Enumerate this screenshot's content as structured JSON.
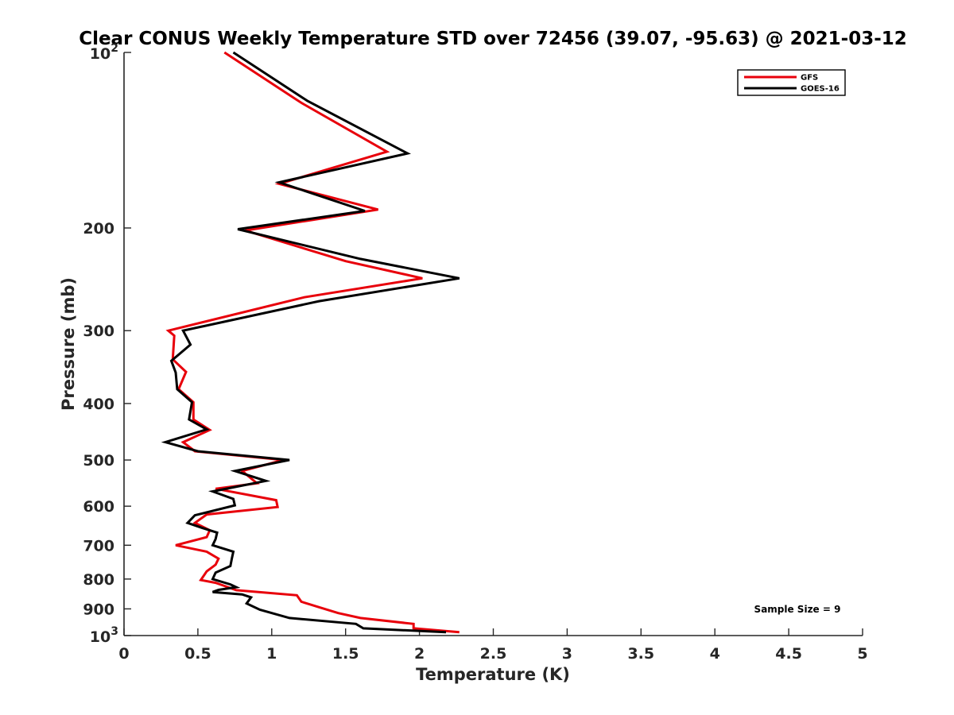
{
  "chart_data": {
    "type": "line",
    "title": "Clear CONUS Weekly Temperature STD over 72456 (39.07, -95.63) @ 2021-03-12",
    "xlabel": "Temperature (K)",
    "ylabel": "Pressure (mb)",
    "xlim": [
      0,
      5
    ],
    "ylim": [
      100,
      1000
    ],
    "yscale": "log",
    "y_direction": "reverse",
    "grid": false,
    "legend_position": "top-right",
    "x_ticks": [
      {
        "value": 0,
        "label": "0"
      },
      {
        "value": 0.5,
        "label": "0.5"
      },
      {
        "value": 1,
        "label": "1"
      },
      {
        "value": 1.5,
        "label": "1.5"
      },
      {
        "value": 2,
        "label": "2"
      },
      {
        "value": 2.5,
        "label": "2.5"
      },
      {
        "value": 3,
        "label": "3"
      },
      {
        "value": 3.5,
        "label": "3.5"
      },
      {
        "value": 4,
        "label": "4"
      },
      {
        "value": 4.5,
        "label": "4.5"
      },
      {
        "value": 5,
        "label": "5"
      }
    ],
    "y_ticks": [
      {
        "value": 100,
        "base": "10",
        "exp": "2"
      },
      {
        "value": 200,
        "label": "200"
      },
      {
        "value": 300,
        "label": "300"
      },
      {
        "value": 400,
        "label": "400"
      },
      {
        "value": 500,
        "label": "500"
      },
      {
        "value": 600,
        "label": "600"
      },
      {
        "value": 700,
        "label": "700"
      },
      {
        "value": 800,
        "label": "800"
      },
      {
        "value": 900,
        "label": "900"
      },
      {
        "value": 1000,
        "base": "10",
        "exp": "3"
      }
    ],
    "series": [
      {
        "name": "GFS",
        "color": "#e8000b",
        "points": [
          [
            0.68,
            100
          ],
          [
            1.2,
            122
          ],
          [
            1.78,
            148
          ],
          [
            1.05,
            168
          ],
          [
            1.72,
            186
          ],
          [
            0.82,
            202
          ],
          [
            1.5,
            228
          ],
          [
            2.02,
            244
          ],
          [
            1.22,
            263
          ],
          [
            0.3,
            300
          ],
          [
            0.34,
            306
          ],
          [
            0.33,
            336
          ],
          [
            0.42,
            353
          ],
          [
            0.37,
            378
          ],
          [
            0.47,
            398
          ],
          [
            0.47,
            426
          ],
          [
            0.58,
            444
          ],
          [
            0.4,
            466
          ],
          [
            0.48,
            483
          ],
          [
            1.08,
            500
          ],
          [
            0.8,
            522
          ],
          [
            0.9,
            548
          ],
          [
            0.62,
            560
          ],
          [
            1.03,
            586
          ],
          [
            1.04,
            602
          ],
          [
            0.56,
            620
          ],
          [
            0.48,
            641
          ],
          [
            0.58,
            660
          ],
          [
            0.56,
            678
          ],
          [
            0.35,
            700
          ],
          [
            0.56,
            718
          ],
          [
            0.64,
            738
          ],
          [
            0.62,
            756
          ],
          [
            0.56,
            776
          ],
          [
            0.52,
            803
          ],
          [
            0.62,
            812
          ],
          [
            0.68,
            822
          ],
          [
            0.76,
            836
          ],
          [
            1.17,
            853
          ],
          [
            1.2,
            875
          ],
          [
            1.32,
            894
          ],
          [
            1.45,
            915
          ],
          [
            1.6,
            933
          ],
          [
            1.96,
            955
          ],
          [
            1.96,
            972
          ],
          [
            2.27,
            987
          ]
        ]
      },
      {
        "name": "GOES-16",
        "color": "#000000",
        "points": [
          [
            0.74,
            100
          ],
          [
            1.24,
            121
          ],
          [
            1.92,
            149
          ],
          [
            1.05,
            167
          ],
          [
            1.63,
            187
          ],
          [
            0.77,
            201
          ],
          [
            1.6,
            226
          ],
          [
            2.27,
            244
          ],
          [
            1.32,
            267
          ],
          [
            0.4,
            300
          ],
          [
            0.45,
            317
          ],
          [
            0.32,
            338
          ],
          [
            0.35,
            354
          ],
          [
            0.36,
            378
          ],
          [
            0.46,
            398
          ],
          [
            0.44,
            426
          ],
          [
            0.56,
            443
          ],
          [
            0.28,
            466
          ],
          [
            0.5,
            483
          ],
          [
            1.12,
            500
          ],
          [
            0.75,
            522
          ],
          [
            0.96,
            543
          ],
          [
            0.6,
            566
          ],
          [
            0.74,
            583
          ],
          [
            0.75,
            598
          ],
          [
            0.48,
            622
          ],
          [
            0.43,
            641
          ],
          [
            0.53,
            654
          ],
          [
            0.63,
            666
          ],
          [
            0.62,
            683
          ],
          [
            0.6,
            700
          ],
          [
            0.74,
            718
          ],
          [
            0.73,
            738
          ],
          [
            0.72,
            760
          ],
          [
            0.62,
            780
          ],
          [
            0.6,
            800
          ],
          [
            0.72,
            817
          ],
          [
            0.76,
            826
          ],
          [
            0.64,
            835
          ],
          [
            0.6,
            842
          ],
          [
            0.8,
            850
          ],
          [
            0.86,
            860
          ],
          [
            0.83,
            881
          ],
          [
            0.92,
            903
          ],
          [
            1.12,
            933
          ],
          [
            1.57,
            955
          ],
          [
            1.62,
            972
          ],
          [
            2.18,
            987
          ]
        ]
      }
    ],
    "legend": [
      {
        "name": "GFS",
        "color": "#e8000b"
      },
      {
        "name": "GOES-16",
        "color": "#000000"
      }
    ],
    "annotation": "Sample Size = 9"
  }
}
